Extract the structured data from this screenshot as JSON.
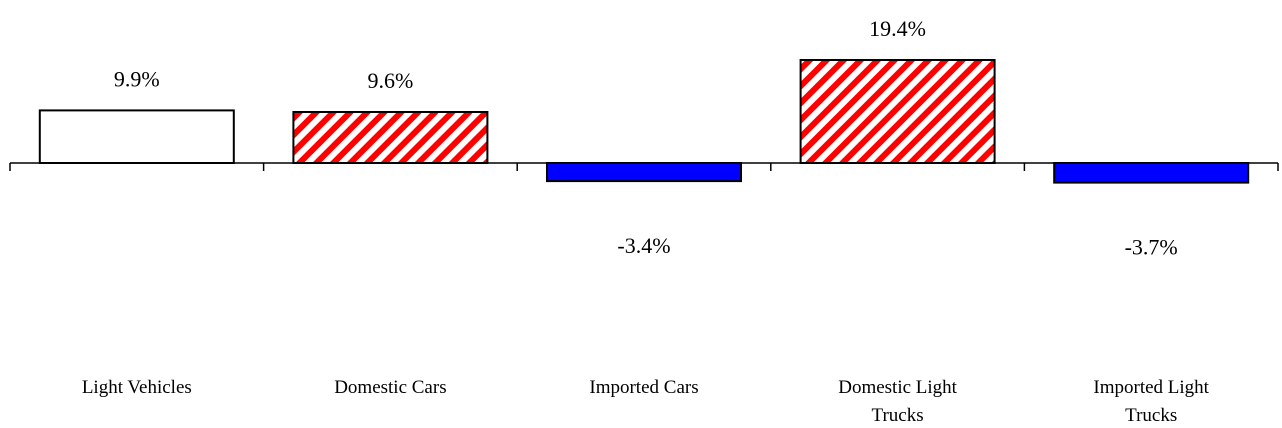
{
  "chart_data": {
    "type": "bar",
    "categories": [
      "Light Vehicles",
      "Domestic Cars",
      "Imported Cars",
      "Domestic Light Trucks",
      "Imported Light Trucks"
    ],
    "values": [
      9.9,
      9.6,
      -3.4,
      19.4,
      -3.7
    ],
    "value_labels": [
      "9.9%",
      "9.6%",
      "-3.4%",
      "19.4%",
      "-3.7%"
    ],
    "bar_styles": [
      "white-fill",
      "red-diagonal-hatch",
      "solid-blue",
      "red-diagonal-hatch",
      "solid-blue"
    ],
    "colors": {
      "white-fill": "#ffffff",
      "hatch": "#ff0000",
      "blue": "#0000ff",
      "outline": "#000000"
    },
    "title": "",
    "xlabel": "",
    "ylabel": "",
    "ylim": [
      -5,
      20
    ],
    "grid": false,
    "legend": "none"
  }
}
